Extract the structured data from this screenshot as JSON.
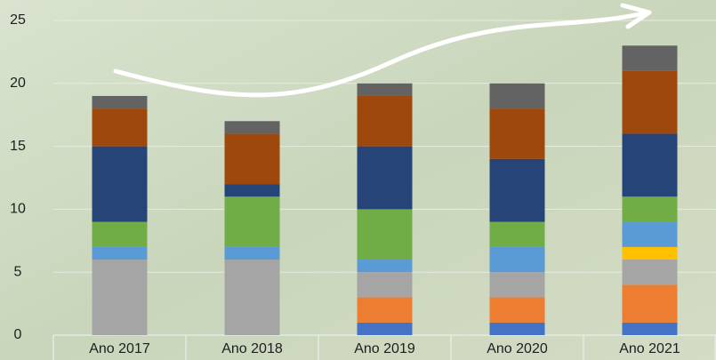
{
  "chart_data": {
    "type": "stacked_bar",
    "categories": [
      "Ano 2017",
      "Ano 2018",
      "Ano 2019",
      "Ano 2020",
      "Ano 2021"
    ],
    "series": [
      {
        "color": "#4472c4",
        "values": [
          0,
          0,
          1,
          1,
          1
        ]
      },
      {
        "color": "#ed7d31",
        "values": [
          0,
          0,
          2,
          2,
          3
        ]
      },
      {
        "color": "#a5a5a5",
        "values": [
          6,
          6,
          2,
          2,
          2
        ]
      },
      {
        "color": "#ffc000",
        "values": [
          0,
          0,
          0,
          0,
          1
        ]
      },
      {
        "color": "#5b9bd5",
        "values": [
          1,
          1,
          1,
          2,
          2
        ]
      },
      {
        "color": "#70ad47",
        "values": [
          2,
          4,
          4,
          2,
          2
        ]
      },
      {
        "color": "#264478",
        "values": [
          6,
          1,
          5,
          5,
          5
        ]
      },
      {
        "color": "#9e480e",
        "values": [
          3,
          4,
          4,
          4,
          5
        ]
      },
      {
        "color": "#636363",
        "values": [
          1,
          1,
          1,
          2,
          2
        ]
      }
    ],
    "ylim": [
      0,
      25
    ],
    "yticks": [
      0,
      5,
      10,
      15,
      20,
      25
    ],
    "grid": true
  }
}
